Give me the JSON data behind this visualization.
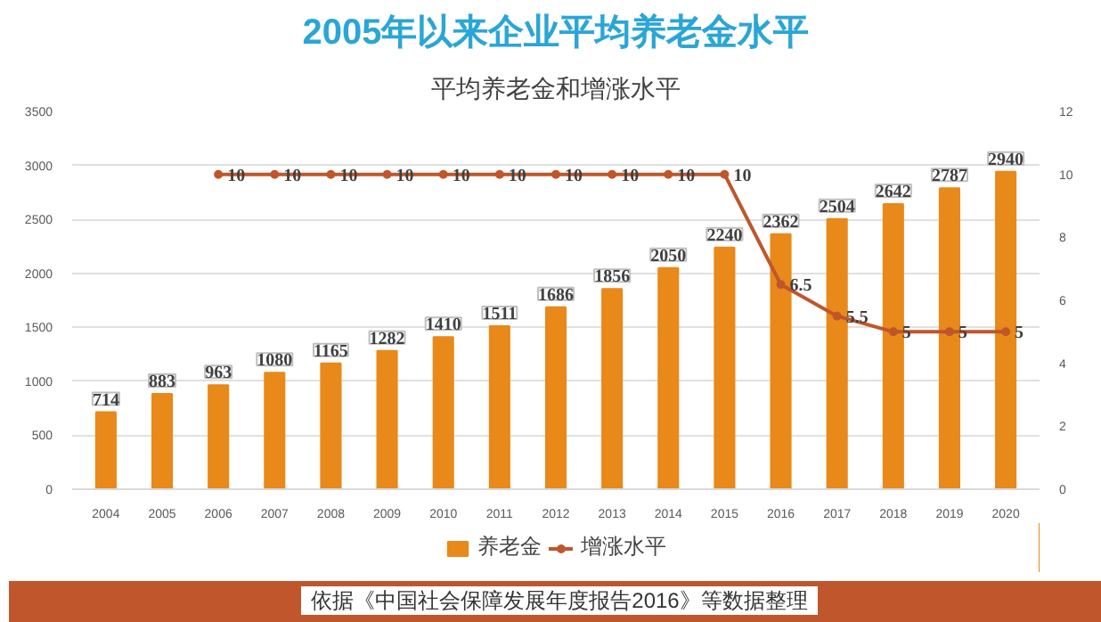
{
  "chart_data": {
    "type": "bar",
    "title": "2005年以来企业平均养老金水平",
    "subtitle": "平均养老金和增涨水平",
    "categories": [
      "2004",
      "2005",
      "2006",
      "2007",
      "2008",
      "2009",
      "2010",
      "2011",
      "2012",
      "2013",
      "2014",
      "2015",
      "2016",
      "2017",
      "2018",
      "2019",
      "2020"
    ],
    "series": [
      {
        "name": "养老金",
        "color": "#e8891a",
        "values": [
          714,
          883,
          963,
          1080,
          1165,
          1282,
          1410,
          1511,
          1686,
          1856,
          2050,
          2240,
          2362,
          2504,
          2642,
          2787,
          2940
        ]
      },
      {
        "name": "增涨水平",
        "type": "line",
        "axis": "y2",
        "color": "#c0562b",
        "values": [
          null,
          null,
          10,
          10,
          10,
          10,
          10,
          10,
          10,
          10,
          10,
          10,
          6.5,
          5.5,
          5,
          5,
          5
        ]
      }
    ],
    "ylim": [
      0,
      3500
    ],
    "yticks": [
      0,
      500,
      1000,
      1500,
      2000,
      2500,
      3000,
      3500
    ],
    "y2lim": [
      0,
      12
    ],
    "y2ticks": [
      0,
      2,
      4,
      6,
      8,
      10,
      12
    ],
    "data_labels": true,
    "grid": "y",
    "legend": "bottom",
    "marker": "circle",
    "annotations": [
      "依据《中国社会保障发展年度报告2016》等数据整理"
    ]
  }
}
